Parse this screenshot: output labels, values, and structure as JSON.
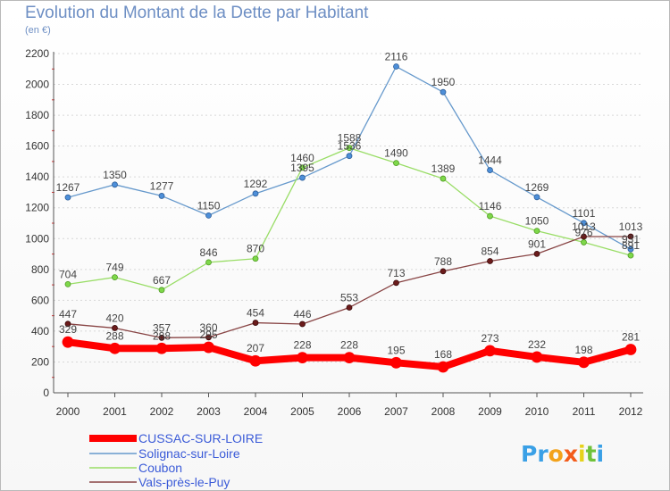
{
  "title": "Evolution du Montant de la Dette par Habitant",
  "subtitle": "(en €)",
  "logo_text": "Proxiti",
  "chart_data": {
    "type": "line",
    "title": "Evolution du Montant de la Dette par Habitant",
    "subtitle": "(en €)",
    "categories": [
      "2000",
      "2001",
      "2002",
      "2003",
      "2004",
      "2005",
      "2006",
      "2007",
      "2008",
      "2009",
      "2010",
      "2011",
      "2012"
    ],
    "ylim": [
      0,
      2200
    ],
    "yticks": [
      0,
      200,
      400,
      600,
      800,
      1000,
      1200,
      1400,
      1600,
      1800,
      2000,
      2200
    ],
    "grid": "horizontal",
    "legend_position": "bottom-left",
    "series": [
      {
        "name": "CUSSAC-SUR-LOIRE",
        "color": "#ff0000",
        "values": [
          329,
          288,
          288,
          295,
          207,
          228,
          228,
          195,
          168,
          273,
          232,
          198,
          281
        ]
      },
      {
        "name": "Solignac-sur-Loire",
        "color": "#6699cc",
        "values": [
          1267,
          1350,
          1277,
          1150,
          1292,
          1395,
          1536,
          2116,
          1950,
          1444,
          1269,
          1101,
          931
        ]
      },
      {
        "name": "Coubon",
        "color": "#99dd66",
        "values": [
          704,
          749,
          667,
          846,
          870,
          1460,
          1588,
          1490,
          1389,
          1146,
          1050,
          976,
          891
        ]
      },
      {
        "name": "Vals-près-le-Puy",
        "color": "#884444",
        "values": [
          447,
          420,
          357,
          360,
          454,
          446,
          553,
          713,
          788,
          854,
          901,
          1013,
          1013
        ]
      }
    ]
  }
}
